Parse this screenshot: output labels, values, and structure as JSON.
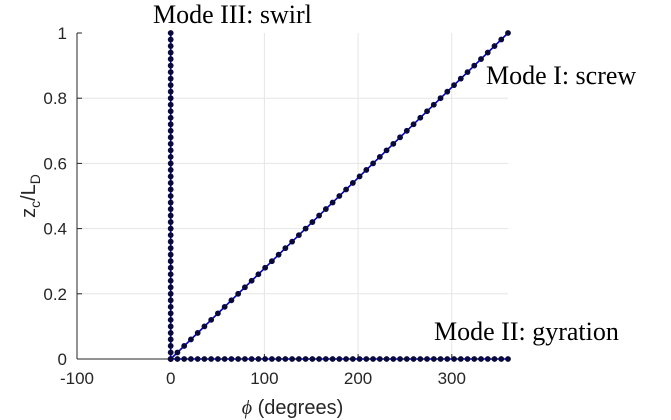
{
  "chart_data": {
    "type": "line",
    "xlabel_symbol": "ϕ",
    "xlabel_text": " (degrees)",
    "ylabel_main": "z",
    "ylabel_sub1": "c",
    "ylabel_mid": "/L",
    "ylabel_sub2": "D",
    "xlim": [
      -100,
      360
    ],
    "ylim": [
      0,
      1
    ],
    "grid": true,
    "xticks": [
      -100,
      0,
      100,
      200,
      300
    ],
    "xtick_labels": [
      "-100",
      "0",
      "100",
      "200",
      "300"
    ],
    "yticks": [
      0,
      0.2,
      0.4,
      0.6,
      0.8,
      1
    ],
    "ytick_labels": [
      "0",
      "0.2",
      "0.4",
      "0.6",
      "0.8",
      "1"
    ],
    "colors": {
      "line": "#0000cc",
      "marker": "#0a0a3a",
      "grid": "#e6e6e6",
      "axis": "#262626"
    },
    "series": [
      {
        "mode": "screw",
        "style": "line+markers",
        "x": [
          0,
          360
        ],
        "y": [
          0,
          1
        ],
        "num_points": 51
      },
      {
        "mode": "gyration",
        "style": "line+markers",
        "x": [
          0,
          360
        ],
        "y": [
          0,
          0
        ],
        "num_points": 51
      },
      {
        "mode": "swirl",
        "style": "line+markers",
        "x": [
          0,
          0
        ],
        "y": [
          0,
          1
        ],
        "num_points": 51
      }
    ],
    "annotations": [
      {
        "text": "Mode III: swirl",
        "x": -10,
        "y": 1.055
      },
      {
        "text": "Mode I: screw",
        "x": 320,
        "y": 0.88
      },
      {
        "text": "Mode II: gyration",
        "x": 270,
        "y": 0.075
      }
    ]
  }
}
